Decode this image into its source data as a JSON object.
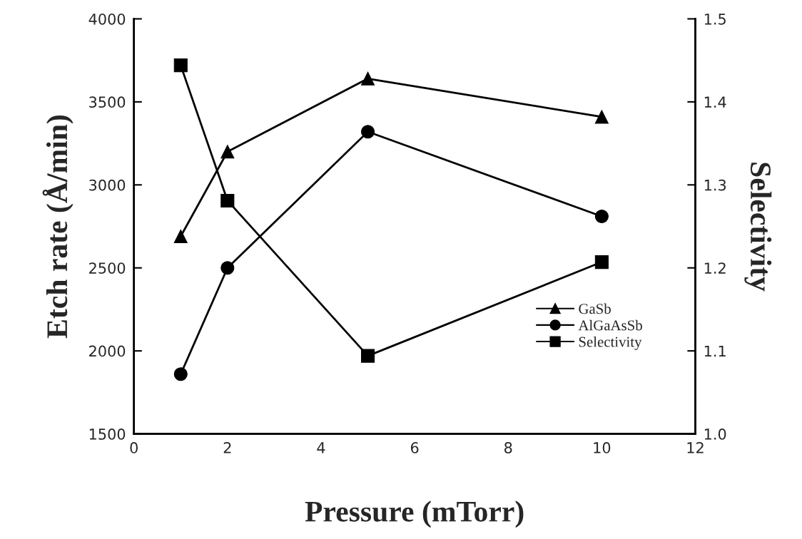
{
  "chart_data": {
    "type": "line",
    "xlabel": "Pressure (mTorr)",
    "ylabel": "Etch rate (Å/min)",
    "y2label": "Selectivity",
    "x": [
      1,
      2,
      5,
      10
    ],
    "series": [
      {
        "name": "GaSb",
        "color": "#000000",
        "marker": "triangle",
        "values": [
          2690,
          3200,
          3640,
          3410
        ]
      },
      {
        "name": "AlGaAsSb",
        "color": "#000000",
        "marker": "circle",
        "values": [
          1860,
          2500,
          3320,
          2810
        ]
      },
      {
        "name": "Selectivity",
        "color": "#000000",
        "marker": "square",
        "axis": "y2",
        "values": [
          1.444,
          1.281,
          1.094,
          1.207
        ]
      }
    ],
    "xlim": [
      0,
      12
    ],
    "xticks": [
      0,
      2,
      4,
      6,
      8,
      10,
      12
    ],
    "ylim": [
      1500,
      4000
    ],
    "yticks": [
      1500,
      2000,
      2500,
      3000,
      3500,
      4000
    ],
    "y2lim": [
      1.0,
      1.5
    ],
    "y2ticks": [
      {
        "value": 1.0,
        "label": "1.0"
      },
      1.1,
      1.2,
      1.3,
      1.4,
      1.5
    ],
    "line_style": "solid",
    "grid": false,
    "legend": "bottom right"
  }
}
